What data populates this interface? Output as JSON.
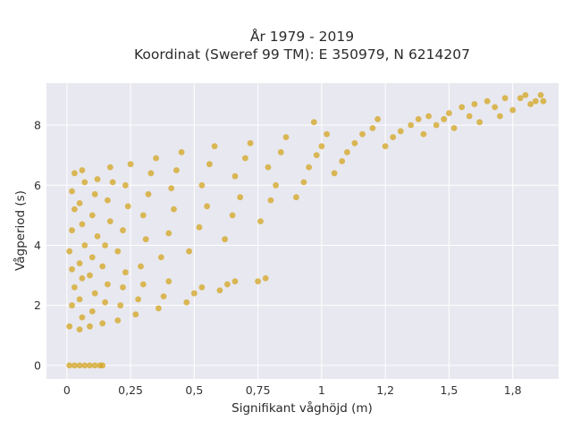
{
  "chart_data": {
    "type": "scatter",
    "title_line1": "År 1979 - 2019",
    "title_line2": "Koordinat (Sweref 99 TM): E 350979, N 6214207",
    "xlabel": "Signifikant våghöjd (m)",
    "ylabel": "Vågperiod (s)",
    "xlim": [
      -0.08,
      1.93
    ],
    "ylim": [
      -0.45,
      9.4
    ],
    "xticks": [
      0,
      0.25,
      0.5,
      0.75,
      1.0,
      1.25,
      1.5,
      1.75
    ],
    "xtick_labels": [
      "0",
      "0,25",
      "0,5",
      "0,75",
      "1",
      "1,2",
      "1,5",
      "1,8"
    ],
    "yticks": [
      0,
      2,
      4,
      6,
      8
    ],
    "ytick_labels": [
      "0",
      "2",
      "4",
      "6",
      "8"
    ],
    "grid": true,
    "background": "#e8e8f0",
    "marker_color": "#d4a520",
    "series": [
      {
        "points": [
          [
            0.01,
            0.0
          ],
          [
            0.03,
            0.0
          ],
          [
            0.05,
            0.0
          ],
          [
            0.07,
            0.0
          ],
          [
            0.09,
            0.0
          ],
          [
            0.11,
            0.0
          ],
          [
            0.13,
            0.0
          ],
          [
            0.14,
            0.0
          ],
          [
            0.01,
            1.3
          ],
          [
            0.02,
            2.0
          ],
          [
            0.03,
            2.6
          ],
          [
            0.02,
            3.2
          ],
          [
            0.01,
            3.8
          ],
          [
            0.02,
            4.5
          ],
          [
            0.03,
            5.2
          ],
          [
            0.02,
            5.8
          ],
          [
            0.03,
            6.4
          ],
          [
            0.05,
            1.2
          ],
          [
            0.06,
            1.6
          ],
          [
            0.05,
            2.2
          ],
          [
            0.06,
            2.9
          ],
          [
            0.05,
            3.4
          ],
          [
            0.07,
            4.0
          ],
          [
            0.06,
            4.7
          ],
          [
            0.05,
            5.4
          ],
          [
            0.07,
            6.1
          ],
          [
            0.06,
            6.5
          ],
          [
            0.09,
            1.3
          ],
          [
            0.1,
            1.8
          ],
          [
            0.11,
            2.4
          ],
          [
            0.09,
            3.0
          ],
          [
            0.1,
            3.6
          ],
          [
            0.12,
            4.3
          ],
          [
            0.1,
            5.0
          ],
          [
            0.11,
            5.7
          ],
          [
            0.12,
            6.2
          ],
          [
            0.14,
            1.4
          ],
          [
            0.15,
            2.1
          ],
          [
            0.16,
            2.7
          ],
          [
            0.14,
            3.3
          ],
          [
            0.15,
            4.0
          ],
          [
            0.17,
            4.8
          ],
          [
            0.16,
            5.5
          ],
          [
            0.18,
            6.1
          ],
          [
            0.17,
            6.6
          ],
          [
            0.2,
            1.5
          ],
          [
            0.21,
            2.0
          ],
          [
            0.22,
            2.6
          ],
          [
            0.23,
            3.1
          ],
          [
            0.2,
            3.8
          ],
          [
            0.22,
            4.5
          ],
          [
            0.24,
            5.3
          ],
          [
            0.23,
            6.0
          ],
          [
            0.25,
            6.7
          ],
          [
            0.27,
            1.7
          ],
          [
            0.28,
            2.2
          ],
          [
            0.3,
            2.7
          ],
          [
            0.29,
            3.3
          ],
          [
            0.31,
            4.2
          ],
          [
            0.3,
            5.0
          ],
          [
            0.32,
            5.7
          ],
          [
            0.33,
            6.4
          ],
          [
            0.35,
            6.9
          ],
          [
            0.36,
            1.9
          ],
          [
            0.38,
            2.3
          ],
          [
            0.4,
            2.8
          ],
          [
            0.37,
            3.6
          ],
          [
            0.4,
            4.4
          ],
          [
            0.42,
            5.2
          ],
          [
            0.41,
            5.9
          ],
          [
            0.43,
            6.5
          ],
          [
            0.45,
            7.1
          ],
          [
            0.47,
            2.1
          ],
          [
            0.5,
            2.4
          ],
          [
            0.53,
            2.6
          ],
          [
            0.48,
            3.8
          ],
          [
            0.52,
            4.6
          ],
          [
            0.55,
            5.3
          ],
          [
            0.53,
            6.0
          ],
          [
            0.56,
            6.7
          ],
          [
            0.58,
            7.3
          ],
          [
            0.6,
            2.5
          ],
          [
            0.63,
            2.7
          ],
          [
            0.66,
            2.8
          ],
          [
            0.62,
            4.2
          ],
          [
            0.65,
            5.0
          ],
          [
            0.68,
            5.6
          ],
          [
            0.66,
            6.3
          ],
          [
            0.7,
            6.9
          ],
          [
            0.72,
            7.4
          ],
          [
            0.75,
            2.8
          ],
          [
            0.78,
            2.9
          ],
          [
            0.76,
            4.8
          ],
          [
            0.8,
            5.5
          ],
          [
            0.82,
            6.0
          ],
          [
            0.79,
            6.6
          ],
          [
            0.84,
            7.1
          ],
          [
            0.86,
            7.6
          ],
          [
            0.9,
            5.6
          ],
          [
            0.93,
            6.1
          ],
          [
            0.95,
            6.6
          ],
          [
            0.98,
            7.0
          ],
          [
            1.0,
            7.3
          ],
          [
            1.02,
            7.7
          ],
          [
            0.97,
            8.1
          ],
          [
            1.05,
            6.4
          ],
          [
            1.08,
            6.8
          ],
          [
            1.1,
            7.1
          ],
          [
            1.13,
            7.4
          ],
          [
            1.16,
            7.7
          ],
          [
            1.2,
            7.9
          ],
          [
            1.22,
            8.2
          ],
          [
            1.25,
            7.3
          ],
          [
            1.28,
            7.6
          ],
          [
            1.31,
            7.8
          ],
          [
            1.35,
            8.0
          ],
          [
            1.38,
            8.2
          ],
          [
            1.4,
            7.7
          ],
          [
            1.42,
            8.3
          ],
          [
            1.45,
            8.0
          ],
          [
            1.48,
            8.2
          ],
          [
            1.5,
            8.4
          ],
          [
            1.52,
            7.9
          ],
          [
            1.55,
            8.6
          ],
          [
            1.58,
            8.3
          ],
          [
            1.6,
            8.7
          ],
          [
            1.62,
            8.1
          ],
          [
            1.65,
            8.8
          ],
          [
            1.68,
            8.6
          ],
          [
            1.7,
            8.3
          ],
          [
            1.72,
            8.9
          ],
          [
            1.75,
            8.5
          ],
          [
            1.78,
            8.9
          ],
          [
            1.8,
            9.0
          ],
          [
            1.82,
            8.7
          ],
          [
            1.84,
            8.8
          ],
          [
            1.86,
            9.0
          ],
          [
            1.87,
            8.8
          ]
        ]
      }
    ]
  }
}
